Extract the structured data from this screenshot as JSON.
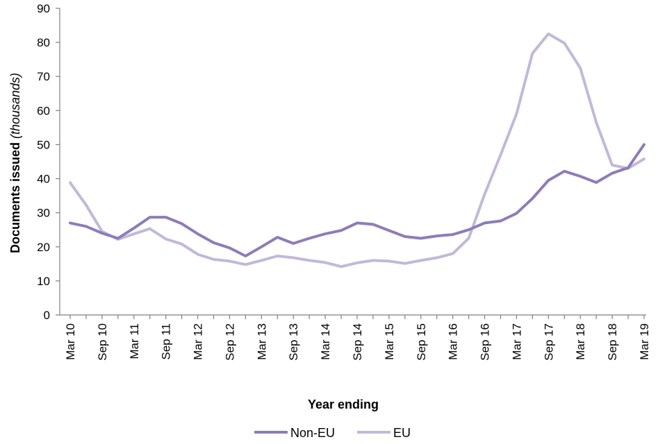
{
  "chart_data": {
    "type": "line",
    "title": "",
    "xlabel": "Year ending",
    "ylabel_main": "Documents issued ",
    "ylabel_italic": "(thousands)",
    "ylim": [
      0,
      90
    ],
    "yticks": [
      0,
      10,
      20,
      30,
      40,
      50,
      60,
      70,
      80,
      90
    ],
    "x": [
      "Mar 10",
      "Jun 10",
      "Sep 10",
      "Dec 10",
      "Mar 11",
      "Jun 11",
      "Sep 11",
      "Dec 11",
      "Mar 12",
      "Jun 12",
      "Sep 12",
      "Dec 12",
      "Mar 13",
      "Jun 13",
      "Sep 13",
      "Dec 13",
      "Mar 14",
      "Jun 14",
      "Sep 14",
      "Dec 14",
      "Mar 15",
      "Jun 15",
      "Sep 15",
      "Dec 15",
      "Mar 16",
      "Jun 16",
      "Sep 16",
      "Dec 16",
      "Mar 17",
      "Jun 17",
      "Sep 17",
      "Dec 17",
      "Mar 18",
      "Jun 18",
      "Sep 18",
      "Dec 18",
      "Mar 19"
    ],
    "x_tick_labels": [
      "Mar 10",
      "Sep 10",
      "Mar 11",
      "Sep 11",
      "Mar 12",
      "Sep 12",
      "Mar 13",
      "Sep 13",
      "Mar 14",
      "Sep 14",
      "Mar 15",
      "Sep 15",
      "Mar 16",
      "Sep 16",
      "Mar 17",
      "Sep 17",
      "Mar 18",
      "Sep 18",
      "Mar 19"
    ],
    "series": [
      {
        "name": "Non-EU",
        "color": "#8E7CB8",
        "values": [
          27.0,
          26.0,
          24.0,
          22.5,
          25.5,
          28.7,
          28.7,
          26.8,
          23.8,
          21.2,
          19.7,
          17.3,
          20.0,
          22.8,
          21.0,
          22.5,
          23.8,
          24.8,
          27.0,
          26.6,
          24.8,
          23.0,
          22.5,
          23.2,
          23.6,
          25.0,
          27.0,
          27.6,
          29.8,
          34.2,
          39.5,
          42.2,
          40.7,
          38.9,
          41.6,
          43.2,
          50.0
        ]
      },
      {
        "name": "EU",
        "color": "#C3B8D8",
        "values": [
          38.8,
          32.3,
          24.5,
          22.2,
          23.8,
          25.3,
          22.3,
          20.8,
          17.8,
          16.3,
          15.8,
          14.8,
          16.0,
          17.3,
          16.8,
          16.0,
          15.4,
          14.2,
          15.3,
          16.0,
          15.8,
          15.1,
          16.0,
          16.8,
          18.0,
          22.5,
          35.5,
          47.0,
          59.0,
          76.8,
          82.5,
          79.8,
          72.5,
          56.5,
          44.0,
          43.0,
          45.8
        ]
      }
    ],
    "legend_position": "bottom-center",
    "grid": false
  }
}
